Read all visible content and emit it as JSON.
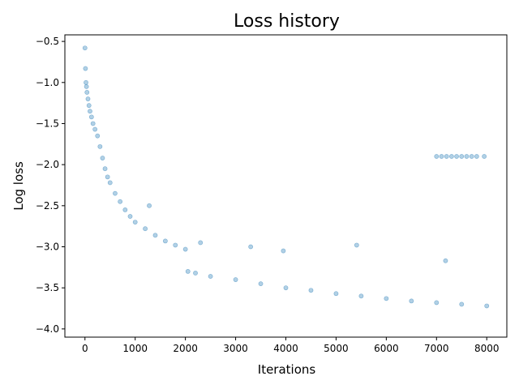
{
  "chart_data": {
    "type": "scatter",
    "title": "Loss history",
    "xlabel": "Iterations",
    "ylabel": "Log loss",
    "xlim": [
      -400,
      8400
    ],
    "ylim": [
      -4.1,
      -0.42
    ],
    "xticks": [
      0,
      1000,
      2000,
      3000,
      4000,
      5000,
      6000,
      7000,
      8000
    ],
    "xtick_labels": [
      "0",
      "1000",
      "2000",
      "3000",
      "4000",
      "5000",
      "6000",
      "7000",
      "8000"
    ],
    "yticks": [
      -0.5,
      -1.0,
      -1.5,
      -2.0,
      -2.5,
      -3.0,
      -3.5,
      -4.0
    ],
    "ytick_labels": [
      "−0.5",
      "−1.0",
      "−1.5",
      "−2.0",
      "−2.5",
      "−3.0",
      "−3.5",
      "−4.0"
    ],
    "grid": false,
    "legend": "none",
    "marker_color": "#1f77b4",
    "marker_alpha": 0.35,
    "series": [
      {
        "points": [
          [
            0,
            -0.58
          ],
          [
            10,
            -0.83
          ],
          [
            20,
            -1.0
          ],
          [
            30,
            -1.05
          ],
          [
            40,
            -1.12
          ],
          [
            60,
            -1.2
          ],
          [
            80,
            -1.28
          ],
          [
            100,
            -1.35
          ],
          [
            130,
            -1.42
          ],
          [
            160,
            -1.5
          ],
          [
            200,
            -1.57
          ],
          [
            250,
            -1.65
          ],
          [
            300,
            -1.78
          ],
          [
            350,
            -1.92
          ],
          [
            400,
            -2.05
          ],
          [
            450,
            -2.15
          ],
          [
            500,
            -2.22
          ],
          [
            600,
            -2.35
          ],
          [
            700,
            -2.45
          ],
          [
            800,
            -2.55
          ],
          [
            900,
            -2.63
          ],
          [
            1000,
            -2.7
          ],
          [
            1200,
            -2.78
          ],
          [
            1400,
            -2.86
          ],
          [
            1600,
            -2.93
          ],
          [
            1800,
            -2.98
          ],
          [
            2000,
            -3.03
          ],
          [
            2050,
            -3.3
          ],
          [
            2200,
            -3.32
          ],
          [
            2500,
            -3.36
          ],
          [
            3000,
            -3.4
          ],
          [
            3500,
            -3.45
          ],
          [
            4000,
            -3.5
          ],
          [
            4500,
            -3.53
          ],
          [
            5000,
            -3.57
          ],
          [
            5500,
            -3.6
          ],
          [
            6000,
            -3.63
          ],
          [
            6500,
            -3.66
          ],
          [
            7000,
            -3.68
          ],
          [
            7500,
            -3.7
          ],
          [
            8000,
            -3.72
          ],
          [
            7000,
            -1.9
          ],
          [
            7100,
            -1.9
          ],
          [
            7200,
            -1.9
          ],
          [
            7300,
            -1.9
          ],
          [
            7400,
            -1.9
          ],
          [
            7500,
            -1.9
          ],
          [
            7600,
            -1.9
          ],
          [
            7700,
            -1.9
          ],
          [
            7800,
            -1.9
          ],
          [
            7950,
            -1.9
          ],
          [
            1280,
            -2.5
          ],
          [
            2300,
            -2.95
          ],
          [
            3300,
            -3.0
          ],
          [
            3950,
            -3.05
          ],
          [
            5410,
            -2.98
          ],
          [
            7180,
            -3.17
          ]
        ]
      }
    ]
  }
}
